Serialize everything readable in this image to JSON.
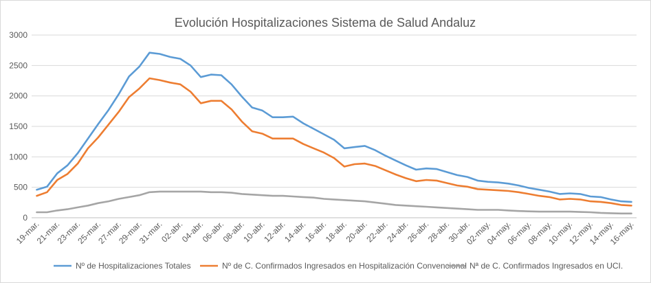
{
  "chart_data": {
    "type": "line",
    "title": "Evolución Hospitalizaciones Sistema de Salud Andaluz",
    "xlabel": "",
    "ylabel": "",
    "ylim": [
      0,
      3000
    ],
    "yticks": [
      0,
      500,
      1000,
      1500,
      2000,
      2500,
      3000
    ],
    "grid": true,
    "legend": "bottom",
    "x_tick_labels": [
      "19-mar.",
      "21-mar.",
      "23-mar.",
      "25-mar.",
      "27-mar.",
      "29-mar.",
      "31-mar.",
      "02-abr.",
      "04-abr.",
      "06-abr.",
      "08-abr.",
      "10-abr.",
      "12-abr.",
      "14-abr.",
      "16-abr.",
      "18-abr.",
      "20-abr.",
      "22-abr.",
      "24-abr.",
      "26-abr.",
      "28-abr.",
      "30-abr.",
      "02-may.",
      "04-may.",
      "06-may.",
      "08-may.",
      "10-may.",
      "12-may.",
      "14-may.",
      "16-may."
    ],
    "series": [
      {
        "name": "Nº de Hospitalizaciones Totales",
        "color": "#5b9bd5",
        "values": [
          460,
          510,
          730,
          860,
          1060,
          1300,
          1540,
          1770,
          2030,
          2320,
          2480,
          2710,
          2690,
          2640,
          2610,
          2500,
          2310,
          2350,
          2340,
          2190,
          1990,
          1810,
          1760,
          1650,
          1650,
          1660,
          1550,
          1460,
          1370,
          1280,
          1140,
          1160,
          1180,
          1110,
          1020,
          940,
          860,
          790,
          810,
          800,
          750,
          700,
          670,
          610,
          590,
          580,
          560,
          530,
          490,
          460,
          430,
          390,
          400,
          390,
          350,
          340,
          300,
          270,
          260
        ]
      },
      {
        "name": "Nº de C. Confirmados Ingresados en Hospitalización Convencional",
        "color": "#ed7d31",
        "values": [
          360,
          420,
          620,
          720,
          890,
          1140,
          1320,
          1530,
          1740,
          1980,
          2120,
          2290,
          2260,
          2220,
          2190,
          2070,
          1880,
          1920,
          1920,
          1780,
          1580,
          1420,
          1380,
          1300,
          1300,
          1300,
          1210,
          1140,
          1070,
          980,
          840,
          880,
          890,
          850,
          780,
          710,
          650,
          600,
          620,
          610,
          570,
          530,
          510,
          470,
          460,
          450,
          440,
          420,
          390,
          360,
          340,
          300,
          310,
          300,
          270,
          260,
          240,
          210,
          200
        ]
      },
      {
        "name": "Nª de C. Confirmados Ingresados en UCI.",
        "color": "#a5a5a5",
        "values": [
          90,
          90,
          120,
          140,
          170,
          200,
          240,
          270,
          310,
          340,
          370,
          420,
          430,
          430,
          430,
          430,
          430,
          420,
          420,
          410,
          390,
          380,
          370,
          360,
          360,
          350,
          340,
          330,
          310,
          300,
          290,
          280,
          270,
          250,
          230,
          210,
          200,
          190,
          180,
          170,
          160,
          150,
          140,
          130,
          130,
          130,
          120,
          110,
          105,
          100,
          100,
          100,
          100,
          95,
          90,
          80,
          75,
          70,
          70
        ]
      }
    ]
  }
}
